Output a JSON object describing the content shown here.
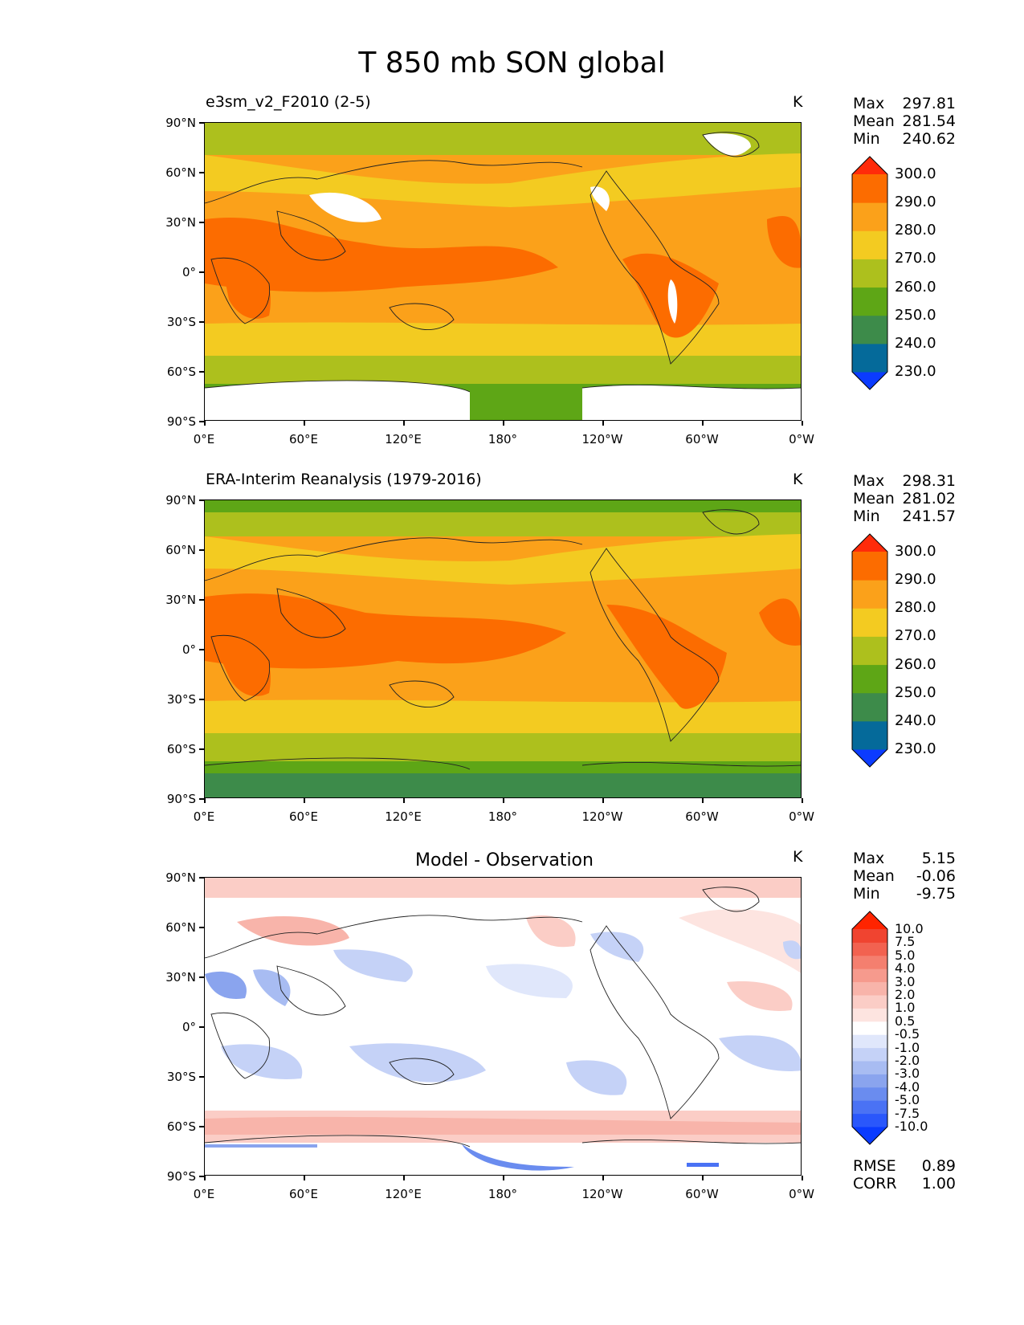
{
  "title": "T 850 mb SON global",
  "axes": {
    "y_ticks": [
      "90°N",
      "60°N",
      "30°N",
      "0°",
      "30°S",
      "60°S",
      "90°S"
    ],
    "x_ticks": [
      "0°E",
      "60°E",
      "120°E",
      "180°",
      "120°W",
      "60°W",
      "0°W"
    ]
  },
  "panels": [
    {
      "label": "e3sm_v2_F2010 (2-5)",
      "units": "K",
      "stats": {
        "max_label": "Max",
        "max": "297.81",
        "mean_label": "Mean",
        "mean": "281.54",
        "min_label": "Min",
        "min": "240.62"
      },
      "colorbar": {
        "ticks": [
          "300.0",
          "290.0",
          "280.0",
          "270.0",
          "260.0",
          "250.0",
          "240.0",
          "230.0"
        ],
        "colors": [
          "#0b3bff",
          "#056a9a",
          "#3d8b4a",
          "#5ea616",
          "#adc01d",
          "#f3cb21",
          "#fba11a",
          "#fc6c00",
          "#ff2b0a"
        ]
      }
    },
    {
      "label": "ERA-Interim Reanalysis (1979-2016)",
      "units": "K",
      "stats": {
        "max_label": "Max",
        "max": "298.31",
        "mean_label": "Mean",
        "mean": "281.02",
        "min_label": "Min",
        "min": "241.57"
      },
      "colorbar": {
        "ticks": [
          "300.0",
          "290.0",
          "280.0",
          "270.0",
          "260.0",
          "250.0",
          "240.0",
          "230.0"
        ],
        "colors": [
          "#0b3bff",
          "#056a9a",
          "#3d8b4a",
          "#5ea616",
          "#adc01d",
          "#f3cb21",
          "#fba11a",
          "#fc6c00",
          "#ff2b0a"
        ]
      }
    },
    {
      "label": "Model - Observation",
      "units": "K",
      "stats": {
        "max_label": "Max",
        "max": "5.15",
        "mean_label": "Mean",
        "mean": "-0.06",
        "min_label": "Min",
        "min": "-9.75"
      },
      "colorbar": {
        "ticks": [
          "10.0",
          "7.5",
          "5.0",
          "4.0",
          "3.0",
          "2.0",
          "1.0",
          "0.5",
          "-0.5",
          "-1.0",
          "-2.0",
          "-3.0",
          "-4.0",
          "-5.0",
          "-7.5",
          "-10.0"
        ],
        "colors": [
          "#0a3bff",
          "#2a57fb",
          "#4a72f4",
          "#6a8cef",
          "#8aa4ee",
          "#a8bcf2",
          "#c5d2f7",
          "#e0e7fb",
          "#ffffff",
          "#fde4e0",
          "#fbcdc6",
          "#f8b4aa",
          "#f69a8d",
          "#f47f6f",
          "#f26250",
          "#f04430",
          "#ff2400"
        ]
      },
      "metrics": {
        "rmse_label": "RMSE",
        "rmse": "0.89",
        "corr_label": "CORR",
        "corr": "1.00"
      }
    }
  ]
}
